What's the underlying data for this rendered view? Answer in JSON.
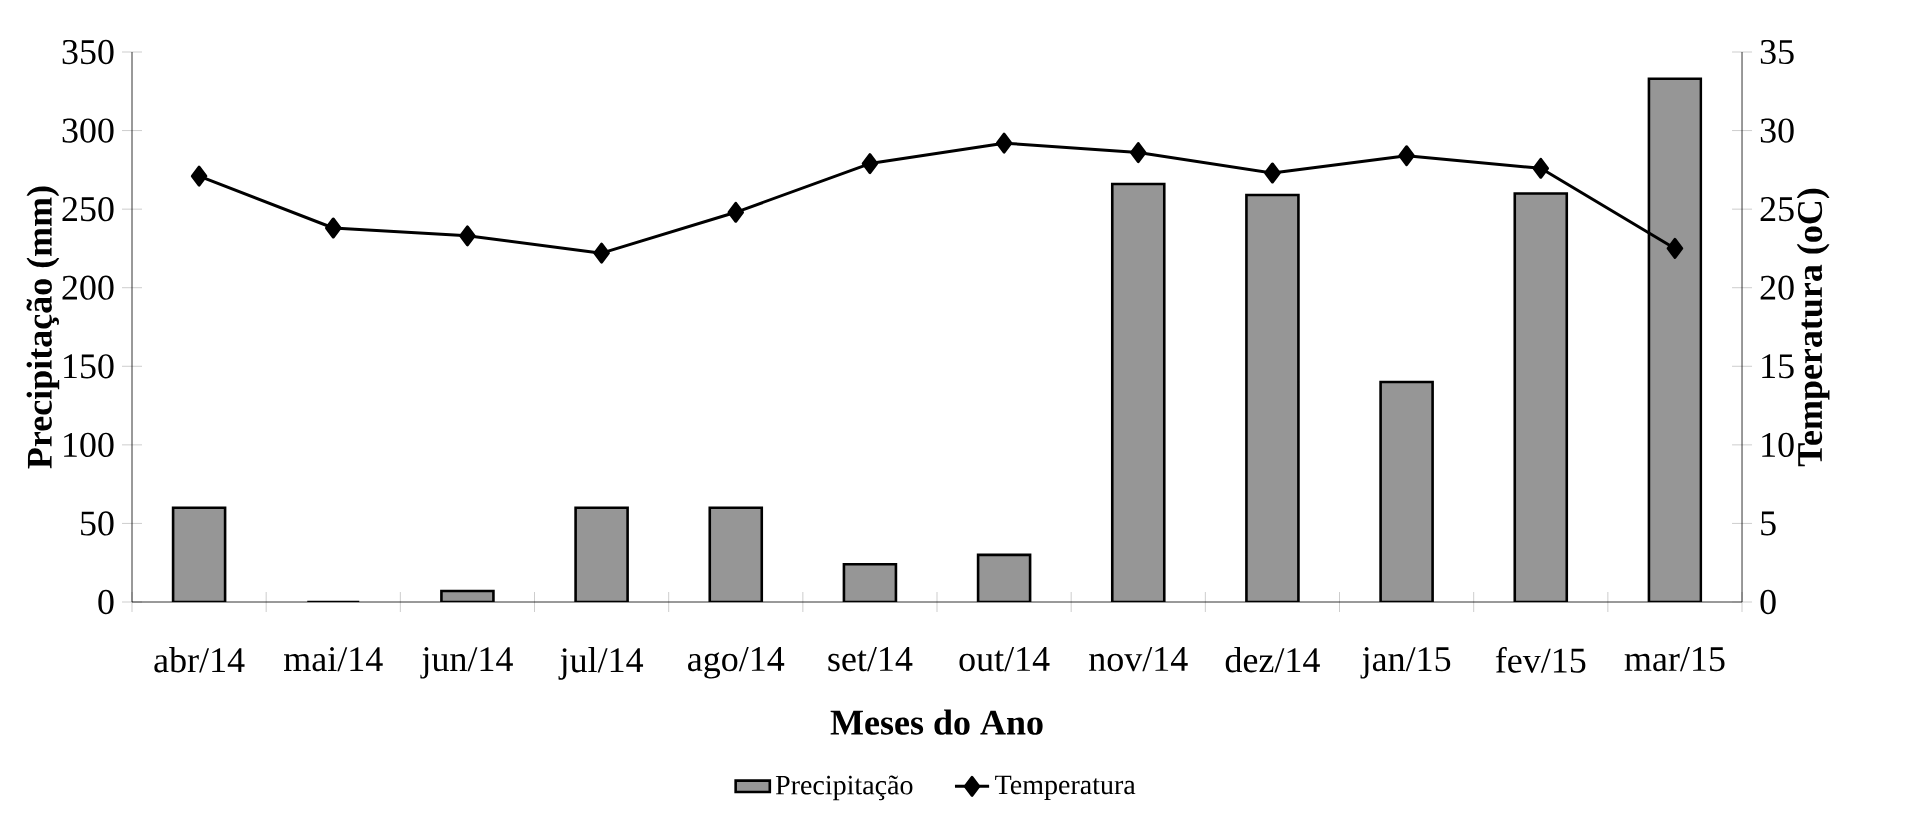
{
  "chart_data": {
    "type": "bar",
    "categories": [
      "abr/14",
      "mai/14",
      "jun/14",
      "jul/14",
      "ago/14",
      "set/14",
      "out/14",
      "nov/14",
      "dez/14",
      "jan/15",
      "fev/15",
      "mar/15"
    ],
    "series": [
      {
        "name": "Precipitação",
        "color": "#969696",
        "values": [
          60,
          0,
          7,
          60,
          60,
          24,
          30,
          266,
          259,
          140,
          260,
          333
        ]
      },
      {
        "name": "Temperatura",
        "type": "line",
        "axis": "y2",
        "color": "#000000",
        "marker": "diamond",
        "values": [
          27.1,
          23.8,
          23.3,
          22.2,
          24.8,
          27.9,
          29.2,
          28.6,
          27.3,
          28.4,
          27.6,
          22.5
        ]
      }
    ],
    "xlabel": "Meses do Ano",
    "ylabel": "Precipitação (mm)",
    "y2label": "Temperatura (oC)",
    "ylim": [
      0,
      350
    ],
    "yticks": [
      0,
      50,
      100,
      150,
      200,
      250,
      300,
      350
    ],
    "y2lim": [
      0,
      35
    ],
    "y2ticks": [
      0,
      5,
      10,
      15,
      20,
      25,
      30,
      35
    ],
    "legend": "bottom"
  }
}
